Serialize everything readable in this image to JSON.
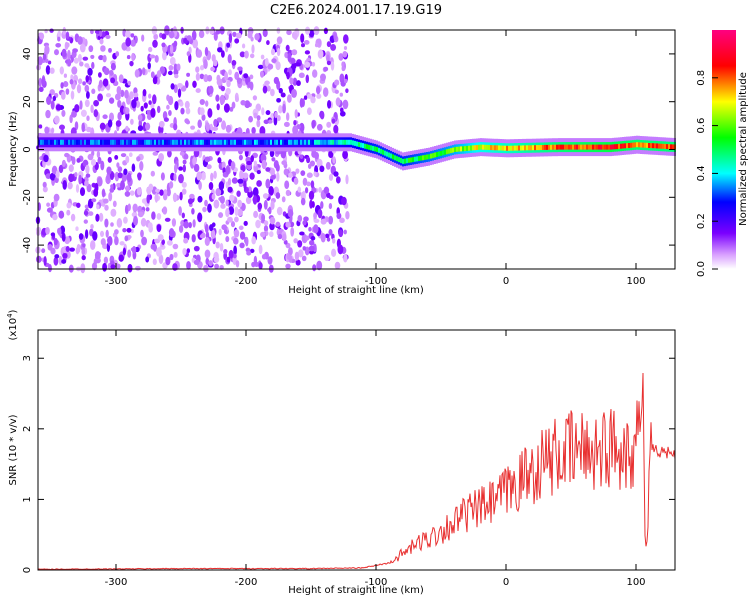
{
  "title": "C2E6.2024.001.17.19.G19",
  "chart_data": [
    {
      "type": "heatmap",
      "xlabel": "Height of straight line (km)",
      "ylabel": "Frequency (Hz)",
      "xlim": [
        -360,
        130
      ],
      "ylim": [
        -50,
        50
      ],
      "xticks": [
        -300,
        -200,
        -100,
        0,
        100
      ],
      "yticks": [
        -40,
        -20,
        0,
        20,
        40
      ],
      "colorbar": {
        "label": "Normalized spectral amplitude",
        "range": [
          0,
          1
        ],
        "ticks": [
          0.0,
          0.2,
          0.4,
          0.6,
          0.8
        ],
        "colormap": [
          "#ffffff",
          "#d9a0ff",
          "#7a00ff",
          "#0000ff",
          "#00ffff",
          "#00ff00",
          "#ffff00",
          "#ff0000",
          "#ff0080"
        ]
      },
      "ridge": [
        {
          "x": -360,
          "freq": 3,
          "amp": 0.3
        },
        {
          "x": -300,
          "freq": 3,
          "amp": 0.3
        },
        {
          "x": -250,
          "freq": 3,
          "amp": 0.32
        },
        {
          "x": -200,
          "freq": 3,
          "amp": 0.33
        },
        {
          "x": -150,
          "freq": 3,
          "amp": 0.35
        },
        {
          "x": -120,
          "freq": 3,
          "amp": 0.45
        },
        {
          "x": -100,
          "freq": 0,
          "amp": 0.5
        },
        {
          "x": -80,
          "freq": -5,
          "amp": 0.5
        },
        {
          "x": -60,
          "freq": -3,
          "amp": 0.55
        },
        {
          "x": -40,
          "freq": 0,
          "amp": 0.6
        },
        {
          "x": -20,
          "freq": 1,
          "amp": 0.68
        },
        {
          "x": 0,
          "freq": 0.5,
          "amp": 0.72
        },
        {
          "x": 40,
          "freq": 1,
          "amp": 0.8
        },
        {
          "x": 80,
          "freq": 1,
          "amp": 0.85
        },
        {
          "x": 100,
          "freq": 2,
          "amp": 0.8
        },
        {
          "x": 130,
          "freq": 1,
          "amp": 0.8
        }
      ],
      "noise_region_x": [
        -360,
        -122
      ]
    },
    {
      "type": "line",
      "xlabel": "Height of straight line (km)",
      "ylabel": "SNR (10 * v/v)",
      "yscale_label": "(x10",
      "yscale_exp": "4",
      "yscale_close": ")",
      "xlim": [
        -360,
        130
      ],
      "ylim": [
        0,
        3.4
      ],
      "xticks": [
        -300,
        -200,
        -100,
        0,
        100
      ],
      "yticks": [
        0,
        1,
        2,
        3
      ],
      "color": "#e83030",
      "series_points": [
        {
          "x": -360,
          "y": 0.01
        },
        {
          "x": -250,
          "y": 0.02
        },
        {
          "x": -150,
          "y": 0.02
        },
        {
          "x": -110,
          "y": 0.03
        },
        {
          "x": -90,
          "y": 0.1
        },
        {
          "x": -70,
          "y": 0.35
        },
        {
          "x": -50,
          "y": 0.55
        },
        {
          "x": -30,
          "y": 0.8
        },
        {
          "x": -10,
          "y": 0.95
        },
        {
          "x": 10,
          "y": 1.25
        },
        {
          "x": 30,
          "y": 1.55
        },
        {
          "x": 50,
          "y": 1.68
        },
        {
          "x": 70,
          "y": 1.72
        },
        {
          "x": 90,
          "y": 1.75
        },
        {
          "x": 100,
          "y": 1.75
        },
        {
          "x": 105,
          "y": 1.8
        },
        {
          "x": 108,
          "y": 0.1
        },
        {
          "x": 112,
          "y": 1.7
        },
        {
          "x": 130,
          "y": 1.65
        }
      ]
    }
  ]
}
